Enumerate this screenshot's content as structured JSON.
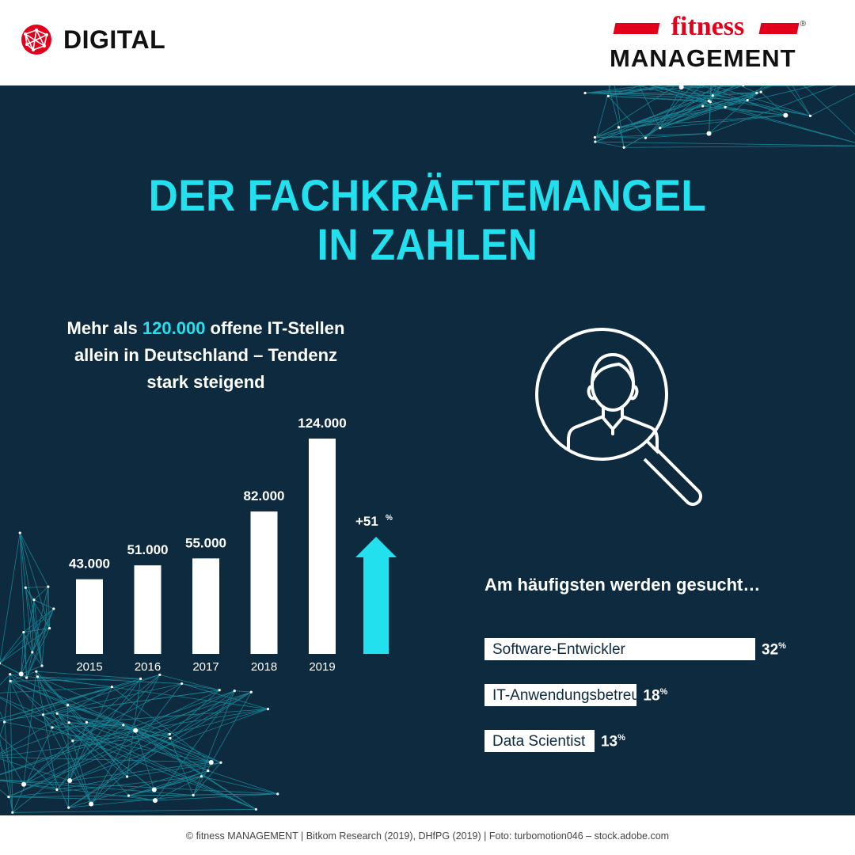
{
  "header": {
    "section_label": "DIGITAL",
    "brand_top": "fitness",
    "brand_bottom": "MANAGEMENT",
    "brand_mark": "®"
  },
  "title_line1": "DER FACHKRÄFTEMANGEL",
  "title_line2": "IN ZAHLEN",
  "subtitle": {
    "pre": "Mehr als ",
    "highlight": "120.000",
    "post_line1": " offene IT-Stellen",
    "line2": "allein in Deutschland – Tendenz",
    "line3": "stark steigend"
  },
  "chart_data": [
    {
      "type": "bar",
      "categories": [
        "2015",
        "2016",
        "2017",
        "2018",
        "2019"
      ],
      "values": [
        43000,
        51000,
        55000,
        82000,
        124000
      ],
      "value_labels": [
        "43.000",
        "51.000",
        "55.000",
        "82.000",
        "124.000"
      ],
      "growth_label": "+51",
      "growth_unit": "%",
      "ylim": [
        0,
        124000
      ]
    },
    {
      "type": "bar",
      "orientation": "horizontal",
      "title": "Am häufigsten werden gesucht…",
      "categories": [
        "Software-Entwickler",
        "IT-Anwendungsbetreuer",
        "Data Scientist"
      ],
      "values": [
        32,
        18,
        13
      ],
      "unit": "%"
    }
  ],
  "footer": "© fitness MANAGEMENT  |  Bitkom Research (2019), DHfPG (2019)  |  Foto: turbomotion046 – stock.adobe.com",
  "colors": {
    "background": "#0d2a3e",
    "accent": "#22e0ee",
    "brand_red": "#e3001b",
    "bars": "#ffffff"
  },
  "icons": [
    "globe-icon",
    "person-search-icon",
    "up-arrow-icon"
  ]
}
